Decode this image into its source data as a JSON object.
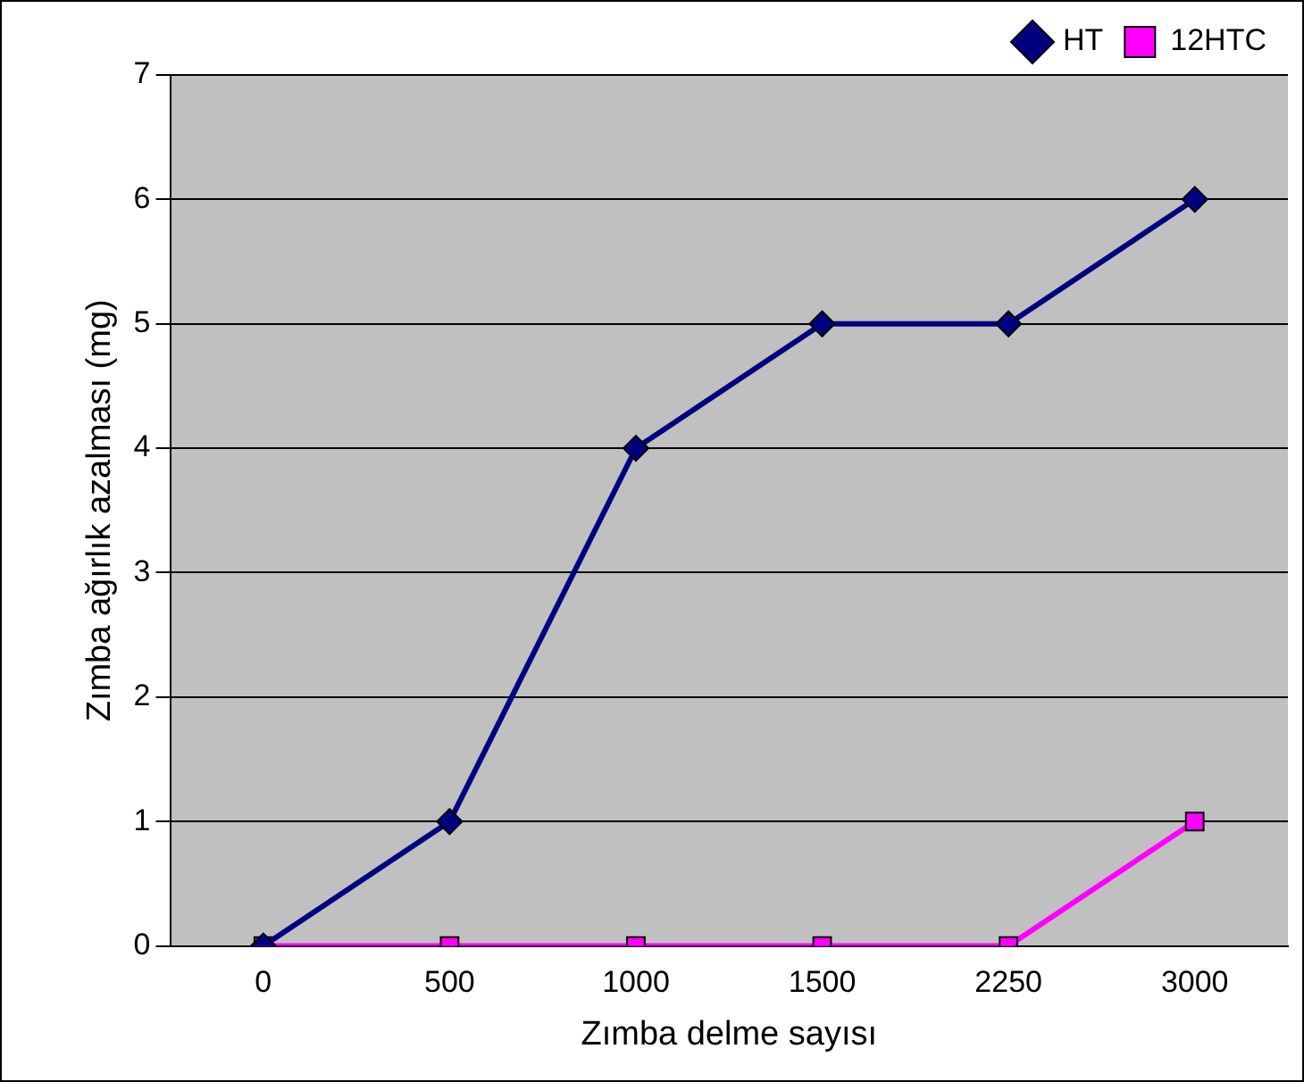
{
  "chart_data": {
    "type": "line",
    "xlabel": "Zımba delme sayısı",
    "ylabel": "Zımba ağırlık azalması (mg)",
    "categories": [
      "0",
      "500",
      "1000",
      "1500",
      "2250",
      "3000"
    ],
    "series": [
      {
        "name": "HT",
        "color": "#000080",
        "marker": "diamond",
        "values": [
          0,
          1,
          4,
          5,
          5,
          6
        ]
      },
      {
        "name": "12HTC",
        "color": "#ff00ff",
        "marker": "square",
        "values": [
          0,
          0,
          0,
          0,
          0,
          1
        ]
      }
    ],
    "ylim": [
      0,
      7
    ],
    "yticks": [
      0,
      1,
      2,
      3,
      4,
      5,
      6,
      7
    ],
    "grid": "y",
    "legend": "top right",
    "line_style": "solid"
  }
}
